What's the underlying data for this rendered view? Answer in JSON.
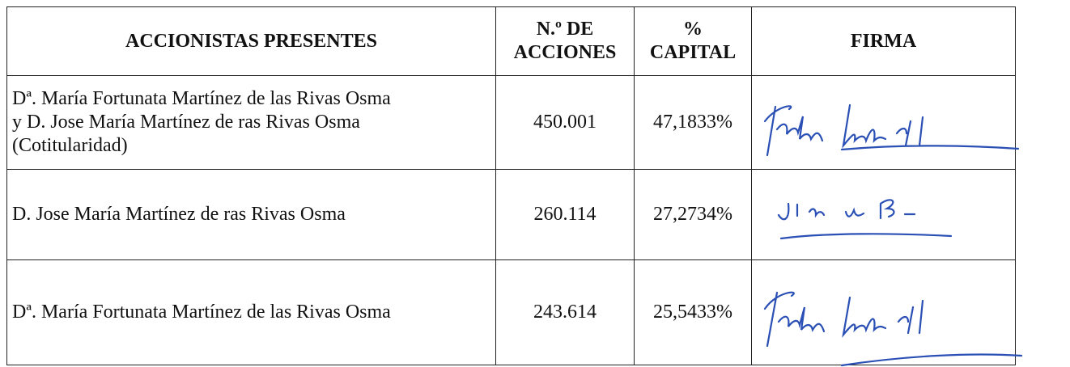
{
  "table": {
    "header": [
      [
        "ACCIONISTAS PRESENTES"
      ],
      [
        "N.º DE",
        "ACCIONES"
      ],
      [
        "%",
        "CAPITAL"
      ],
      [
        "FIRMA"
      ]
    ],
    "rows": [
      {
        "holder": [
          "Dª. María Fortunata Martínez de las Rivas Osma",
          "y D. Jose María Martínez de ras Rivas Osma",
          "(Cotitularidad)"
        ],
        "shares": "450.001",
        "capital": "47,1833%"
      },
      {
        "holder": [
          "D. Jose María Martínez de ras Rivas Osma"
        ],
        "shares": "260.114",
        "capital": "27,2734%"
      },
      {
        "holder": [
          "Dª. María Fortunata Martínez de las Rivas Osma"
        ],
        "shares": "243.614",
        "capital": "25,5433%"
      }
    ]
  }
}
